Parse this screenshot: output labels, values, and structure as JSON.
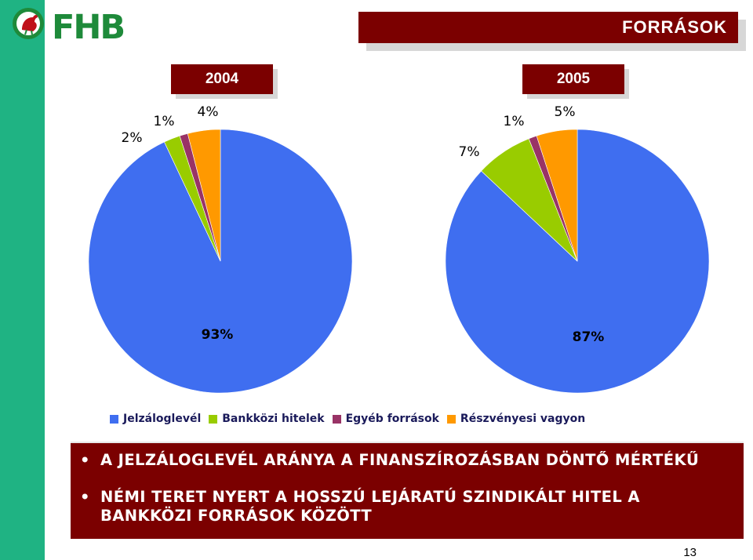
{
  "header": {
    "logo_text": "FHB",
    "title": "FORRÁSOK"
  },
  "colors": {
    "title_box": "#7b0000",
    "side_bar": "#1fb383",
    "Jelzáloglevél": "#3f6ef0",
    "Bankközi hitelek": "#99cc00",
    "Egyéb források": "#993366",
    "Részvényesi vagyon": "#ff9900"
  },
  "chart_data": [
    {
      "type": "pie",
      "title": "2004",
      "categories": [
        "Jelzáloglevél",
        "Bankközi hitelek",
        "Egyéb források",
        "Részvényesi vagyon"
      ],
      "values": [
        93,
        2,
        1,
        4
      ],
      "labels": [
        "93%",
        "2%",
        "1%",
        "4%"
      ],
      "legend_position": "bottom"
    },
    {
      "type": "pie",
      "title": "2005",
      "categories": [
        "Jelzáloglevél",
        "Bankközi hitelek",
        "Egyéb források",
        "Részvényesi vagyon"
      ],
      "values": [
        87,
        7,
        1,
        5
      ],
      "labels": [
        "87%",
        "7%",
        "1%",
        "5%"
      ],
      "legend_position": "bottom"
    }
  ],
  "legend": [
    "Jelzáloglevél",
    "Bankközi hitelek",
    "Egyéb források",
    "Részvényesi vagyon"
  ],
  "bullets": [
    "A JELZÁLOGLEVÉL ARÁNYA A FINANSZÍROZÁSBAN DÖNTŐ MÉRTÉKŰ",
    "NÉMI TERET NYERT A HOSSZÚ LEJÁRATÚ SZINDIKÁLT HITEL A BANKKÖZI FORRÁSOK KÖZÖTT"
  ],
  "page_number": "13"
}
